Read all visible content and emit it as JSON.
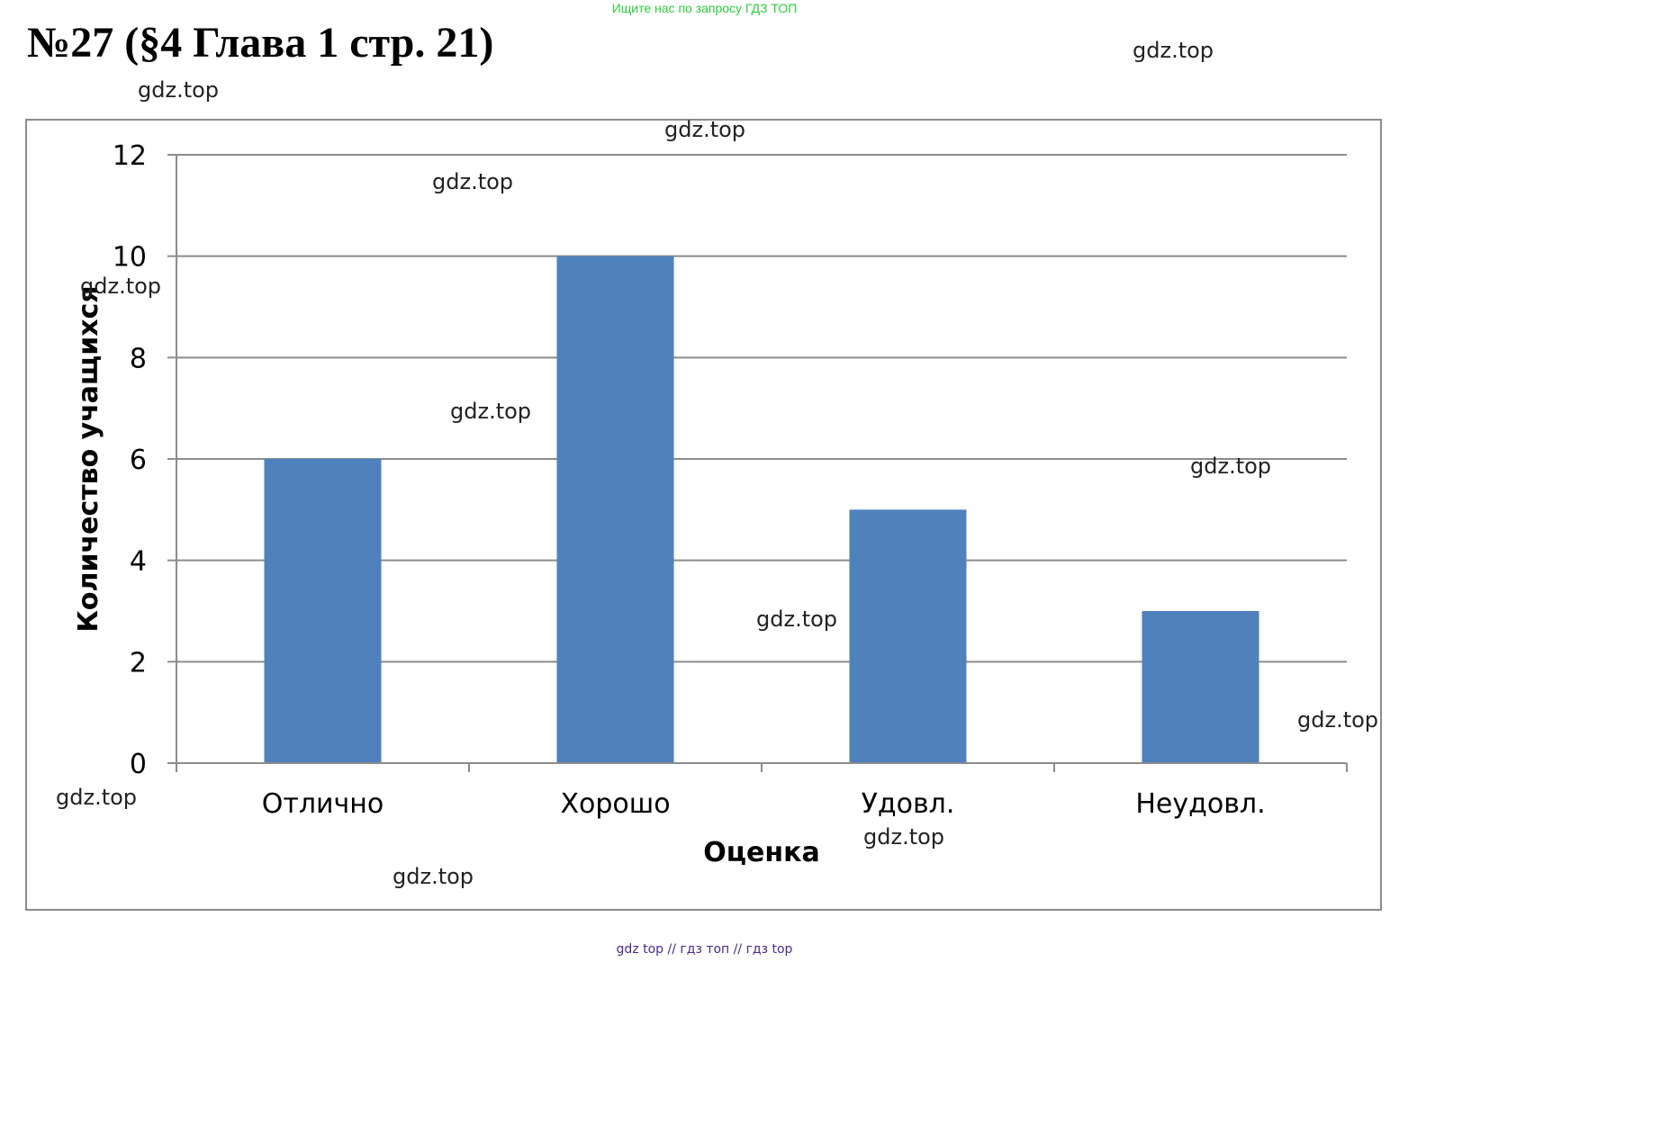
{
  "banner": "Ищите нас по запросу ГДЗ ТОП",
  "page_title": "№27 (§4 Глава 1 стр. 21)",
  "watermark": "gdz.top",
  "footer": {
    "links": [
      "gdz top",
      "гдз топ",
      "гдз top"
    ],
    "separator": "//"
  },
  "colors": {
    "bar": "#4f81bd",
    "grid": "#8c8c8c",
    "frame": "#8c8c8c",
    "banner": "#2ecc40",
    "footer": "#4b2a8a"
  },
  "chart_data": {
    "type": "bar",
    "categories": [
      "Отлично",
      "Хорошо",
      "Удовл.",
      "Неудовл."
    ],
    "values": [
      6,
      10,
      5,
      3
    ],
    "title": "",
    "xlabel": "Оценка",
    "ylabel": "Количество учащихся",
    "ylim": [
      0,
      12
    ],
    "yticks": [
      0,
      2,
      4,
      6,
      8,
      10,
      12
    ],
    "grid": true,
    "legend": "none"
  }
}
